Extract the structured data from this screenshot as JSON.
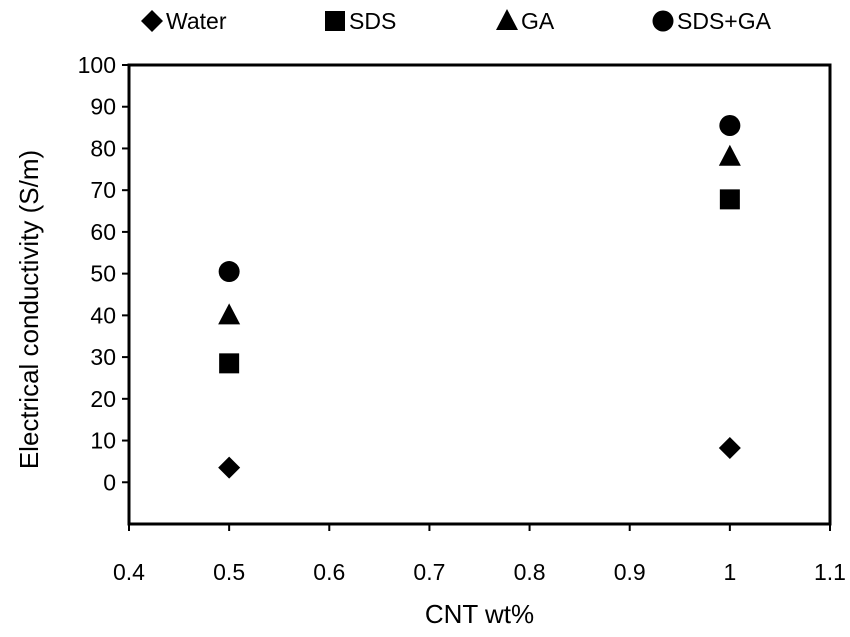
{
  "chart_data": {
    "type": "scatter",
    "title": "",
    "xlabel": "CNT wt%",
    "ylabel": "Electrical conductivity (S/m)",
    "xlim": [
      0.4,
      1.1
    ],
    "ylim": [
      -10,
      100
    ],
    "xticks": [
      "0.4",
      "0.5",
      "0.6",
      "0.7",
      "0.8",
      "0.9",
      "1",
      "1.1"
    ],
    "yticks": [
      "0",
      "10",
      "20",
      "30",
      "40",
      "50",
      "60",
      "70",
      "80",
      "90",
      "100"
    ],
    "grid": false,
    "legend_position": "top",
    "series": [
      {
        "name": "Water",
        "marker": "diamond",
        "color": "#000000",
        "points": [
          [
            0.5,
            3.5
          ],
          [
            1.0,
            8.2
          ]
        ]
      },
      {
        "name": "SDS",
        "marker": "square",
        "color": "#000000",
        "points": [
          [
            0.5,
            28.5
          ],
          [
            1.0,
            67.8
          ]
        ]
      },
      {
        "name": "GA",
        "marker": "triangle",
        "color": "#000000",
        "points": [
          [
            0.5,
            40.0
          ],
          [
            1.0,
            78.0
          ]
        ]
      },
      {
        "name": "SDS+GA",
        "marker": "circle",
        "color": "#000000",
        "points": [
          [
            0.5,
            50.5
          ],
          [
            1.0,
            85.5
          ]
        ]
      }
    ]
  }
}
